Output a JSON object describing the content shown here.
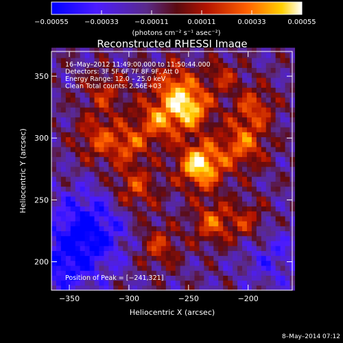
{
  "chart_data": {
    "type": "heatmap",
    "title": "Reconstructed RHESSI Image",
    "xlabel": "Heliocentric X (arcsec)",
    "ylabel": "Heliocentric Y (arcsec)",
    "xlim": [
      -365,
      -163
    ],
    "ylim": [
      177,
      370
    ],
    "x_ticks": [
      -350,
      -300,
      -250,
      -200
    ],
    "y_ticks": [
      200,
      250,
      300,
      350
    ],
    "x_tick_labels": [
      "−350",
      "−300",
      "−250",
      "−200"
    ],
    "y_tick_labels": [
      "200",
      "250",
      "300",
      "350"
    ],
    "colorbar": {
      "range": [
        -0.00055,
        0.00055
      ],
      "ticks": [
        -0.00055,
        -0.00033,
        -0.00011,
        0.00011,
        0.00033,
        0.00055
      ],
      "tick_labels": [
        "−0.00055",
        "−0.00033",
        "−0.00011",
        "0.00011",
        "0.00033",
        "0.00055"
      ],
      "units_label": "(photons cm⁻² s⁻¹ asec⁻²)"
    },
    "annotations": [
      "16–May–2012 11:49:00.000 to 11:50:44.000",
      "Detectors: 3F 5F 6F 7F 8F 9F, Att 0",
      "Energy Range: 12.0 – 25.0 keV",
      "Clean    Total counts: 2.56E+03"
    ],
    "peak_label": "Position of Peak = [−241,321]",
    "peak": {
      "x": -241,
      "y": 321
    },
    "hotspots": [
      {
        "x": -240,
        "y": 278,
        "amp": 1.0,
        "sigma": 13
      },
      {
        "x": -248,
        "y": 325,
        "amp": 0.85,
        "sigma": 12
      },
      {
        "x": -275,
        "y": 315,
        "amp": 0.65,
        "sigma": 14
      },
      {
        "x": -262,
        "y": 345,
        "amp": 0.55,
        "sigma": 12
      },
      {
        "x": -205,
        "y": 295,
        "amp": 0.6,
        "sigma": 14
      },
      {
        "x": -195,
        "y": 325,
        "amp": 0.5,
        "sigma": 12
      },
      {
        "x": -295,
        "y": 260,
        "amp": 0.5,
        "sigma": 14
      },
      {
        "x": -230,
        "y": 232,
        "amp": 0.55,
        "sigma": 12
      },
      {
        "x": -275,
        "y": 213,
        "amp": 0.45,
        "sigma": 12
      },
      {
        "x": -325,
        "y": 300,
        "amp": 0.5,
        "sigma": 14
      },
      {
        "x": -320,
        "y": 338,
        "amp": 0.4,
        "sigma": 12
      },
      {
        "x": -200,
        "y": 232,
        "amp": 0.4,
        "sigma": 12
      },
      {
        "x": -300,
        "y": 295,
        "amp": 0.45,
        "sigma": 10
      },
      {
        "x": -222,
        "y": 350,
        "amp": 0.4,
        "sigma": 10
      }
    ],
    "coldspots": [
      {
        "x": -335,
        "y": 225,
        "amp": 0.65,
        "sigma": 22
      },
      {
        "x": -180,
        "y": 205,
        "amp": 0.3,
        "sigma": 18
      },
      {
        "x": -355,
        "y": 195,
        "amp": 0.4,
        "sigma": 16
      }
    ]
  },
  "footer": {
    "timestamp": "8–May–2014 07:12"
  }
}
